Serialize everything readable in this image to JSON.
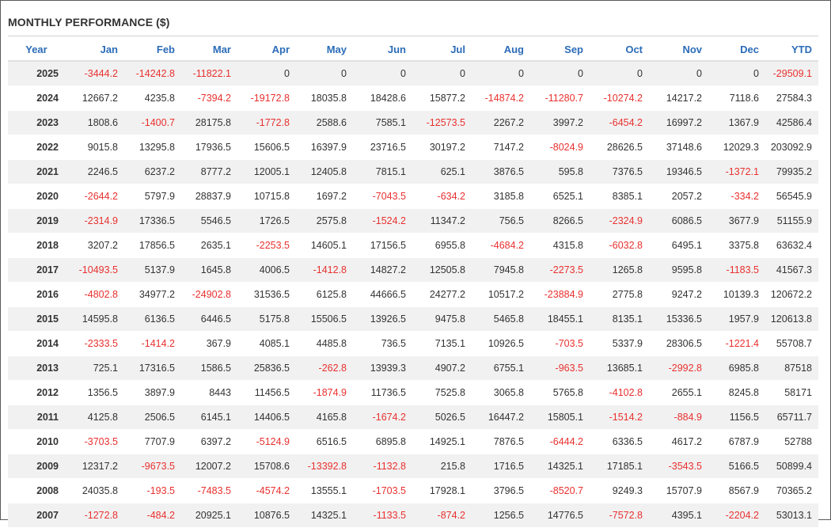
{
  "title": "MONTHLY PERFORMANCE ($)",
  "columns": [
    "Year",
    "Jan",
    "Feb",
    "Mar",
    "Apr",
    "May",
    "Jun",
    "Jul",
    "Aug",
    "Sep",
    "Oct",
    "Nov",
    "Dec",
    "YTD"
  ],
  "colors": {
    "header": "#2b6cb8",
    "negative": "#e8312f",
    "text": "#333333",
    "stripe": "#f1f1f1"
  },
  "rows": [
    [
      "2025",
      "-3444.2",
      "-14242.8",
      "-11822.1",
      "0",
      "0",
      "0",
      "0",
      "0",
      "0",
      "0",
      "0",
      "0",
      "-29509.1"
    ],
    [
      "2024",
      "12667.2",
      "4235.8",
      "-7394.2",
      "-19172.8",
      "18035.8",
      "18428.6",
      "15877.2",
      "-14874.2",
      "-11280.7",
      "-10274.2",
      "14217.2",
      "7118.6",
      "27584.3"
    ],
    [
      "2023",
      "1808.6",
      "-1400.7",
      "28175.8",
      "-1772.8",
      "2588.6",
      "7585.1",
      "-12573.5",
      "2267.2",
      "3997.2",
      "-6454.2",
      "16997.2",
      "1367.9",
      "42586.4"
    ],
    [
      "2022",
      "9015.8",
      "13295.8",
      "17936.5",
      "15606.5",
      "16397.9",
      "23716.5",
      "30197.2",
      "7147.2",
      "-8024.9",
      "28626.5",
      "37148.6",
      "12029.3",
      "203092.9"
    ],
    [
      "2021",
      "2246.5",
      "6237.2",
      "8777.2",
      "12005.1",
      "12405.8",
      "7815.1",
      "625.1",
      "3876.5",
      "595.8",
      "7376.5",
      "19346.5",
      "-1372.1",
      "79935.2"
    ],
    [
      "2020",
      "-2644.2",
      "5797.9",
      "28837.9",
      "10715.8",
      "1697.2",
      "-7043.5",
      "-634.2",
      "3185.8",
      "6525.1",
      "8385.1",
      "2057.2",
      "-334.2",
      "56545.9"
    ],
    [
      "2019",
      "-2314.9",
      "17336.5",
      "5546.5",
      "1726.5",
      "2575.8",
      "-1524.2",
      "11347.2",
      "756.5",
      "8266.5",
      "-2324.9",
      "6086.5",
      "3677.9",
      "51155.9"
    ],
    [
      "2018",
      "3207.2",
      "17856.5",
      "2635.1",
      "-2253.5",
      "14605.1",
      "17156.5",
      "6955.8",
      "-4684.2",
      "4315.8",
      "-6032.8",
      "6495.1",
      "3375.8",
      "63632.4"
    ],
    [
      "2017",
      "-10493.5",
      "5137.9",
      "1645.8",
      "4006.5",
      "-1412.8",
      "14827.2",
      "12505.8",
      "7945.8",
      "-2273.5",
      "1265.8",
      "9595.8",
      "-1183.5",
      "41567.3"
    ],
    [
      "2016",
      "-4802.8",
      "34977.2",
      "-24902.8",
      "31536.5",
      "6125.8",
      "44666.5",
      "24277.2",
      "10517.2",
      "-23884.9",
      "2775.8",
      "9247.2",
      "10139.3",
      "120672.2"
    ],
    [
      "2015",
      "14595.8",
      "6136.5",
      "6446.5",
      "5175.8",
      "15506.5",
      "13926.5",
      "9475.8",
      "5465.8",
      "18455.1",
      "8135.1",
      "15336.5",
      "1957.9",
      "120613.8"
    ],
    [
      "2014",
      "-2333.5",
      "-1414.2",
      "367.9",
      "4085.1",
      "4485.8",
      "736.5",
      "7135.1",
      "10926.5",
      "-703.5",
      "5337.9",
      "28306.5",
      "-1221.4",
      "55708.7"
    ],
    [
      "2013",
      "725.1",
      "17316.5",
      "1586.5",
      "25836.5",
      "-262.8",
      "13939.3",
      "4907.2",
      "6755.1",
      "-963.5",
      "13685.1",
      "-2992.8",
      "6985.8",
      "87518"
    ],
    [
      "2012",
      "1356.5",
      "3897.9",
      "8443",
      "11456.5",
      "-1874.9",
      "11736.5",
      "7525.8",
      "3065.8",
      "5765.8",
      "-4102.8",
      "2655.1",
      "8245.8",
      "58171"
    ],
    [
      "2011",
      "4125.8",
      "2506.5",
      "6145.1",
      "14406.5",
      "4165.8",
      "-1674.2",
      "5026.5",
      "16447.2",
      "15805.1",
      "-1514.2",
      "-884.9",
      "1156.5",
      "65711.7"
    ],
    [
      "2010",
      "-3703.5",
      "7707.9",
      "6397.2",
      "-5124.9",
      "6516.5",
      "6895.8",
      "14925.1",
      "7876.5",
      "-6444.2",
      "6336.5",
      "4617.2",
      "6787.9",
      "52788"
    ],
    [
      "2009",
      "12317.2",
      "-9673.5",
      "12007.2",
      "15708.6",
      "-13392.8",
      "-1132.8",
      "215.8",
      "1716.5",
      "14325.1",
      "17185.1",
      "-3543.5",
      "5166.5",
      "50899.4"
    ],
    [
      "2008",
      "24035.8",
      "-193.5",
      "-7483.5",
      "-4574.2",
      "13555.1",
      "-1703.5",
      "17928.1",
      "3796.5",
      "-8520.7",
      "9249.3",
      "15707.9",
      "8567.9",
      "70365.2"
    ],
    [
      "2007",
      "-1272.8",
      "-484.2",
      "20925.1",
      "10876.5",
      "14325.1",
      "-1133.5",
      "-874.2",
      "1256.5",
      "14776.5",
      "-7572.8",
      "4395.1",
      "-2204.2",
      "53013.1"
    ]
  ]
}
